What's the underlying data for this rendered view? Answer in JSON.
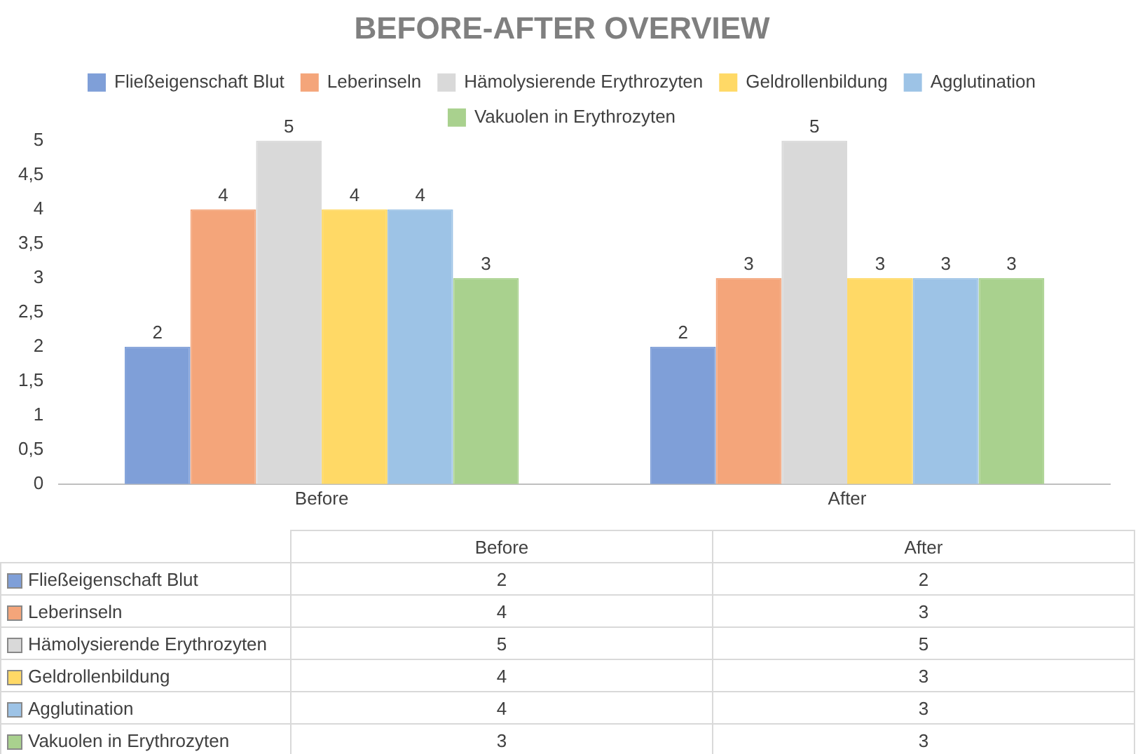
{
  "chart_data": [
    {
      "type": "bar",
      "title": "BEFORE-AFTER OVERVIEW",
      "categories": [
        "Before",
        "After"
      ],
      "series": [
        {
          "name": "Fließeigenschaft Blut",
          "color": "#7f9fd8",
          "values": [
            2,
            2
          ],
          "value_labels": [
            "2",
            "2"
          ]
        },
        {
          "name": "Leberinseln",
          "color": "#f4a57a",
          "values": [
            4,
            3
          ],
          "value_labels": [
            "4",
            "3"
          ]
        },
        {
          "name": "Hämolysierende Erythrozyten",
          "color": "#d9d9d9",
          "values": [
            5,
            5
          ],
          "value_labels": [
            "5",
            "5"
          ]
        },
        {
          "name": "Geldrollenbildung",
          "color": "#ffd966",
          "values": [
            4,
            3
          ],
          "value_labels": [
            "4",
            "3"
          ]
        },
        {
          "name": "Agglutination",
          "color": "#9dc3e6",
          "values": [
            4,
            3
          ],
          "value_labels": [
            "4",
            "3"
          ]
        },
        {
          "name": "Vakuolen in Erythrozyten",
          "color": "#a9d18e",
          "values": [
            3,
            3
          ],
          "value_labels": [
            "3",
            "3"
          ]
        }
      ],
      "ylim": [
        0,
        5
      ],
      "yticks": [
        0,
        {
          "value": 0.5,
          "label": "0,5"
        },
        1,
        {
          "value": 1.5,
          "label": "1,5"
        },
        2,
        {
          "value": 2.5,
          "label": "2,5"
        },
        3,
        {
          "value": 3.5,
          "label": "3,5"
        },
        4,
        {
          "value": 4.5,
          "label": "4,5"
        },
        5
      ],
      "grid": false,
      "legend": "top"
    },
    {
      "type": "other",
      "categories": [
        "Before",
        "After"
      ],
      "data_labels": true,
      "series": [
        {
          "name": "Fließeigenschaft Blut",
          "color": "#7f9fd8",
          "values": [
            2,
            2
          ]
        },
        {
          "name": "Leberinseln",
          "color": "#f4a57a",
          "values": [
            4,
            3
          ]
        },
        {
          "name": "Hämolysierende Erythrozyten",
          "color": "#d9d9d9",
          "values": [
            5,
            5
          ]
        },
        {
          "name": "Geldrollenbildung",
          "color": "#ffd966",
          "values": [
            4,
            3
          ]
        },
        {
          "name": "Agglutination",
          "color": "#9dc3e6",
          "values": [
            4,
            3
          ]
        },
        {
          "name": "Vakuolen in Erythrozyten",
          "color": "#a9d18e",
          "values": [
            3,
            3
          ]
        }
      ]
    }
  ]
}
